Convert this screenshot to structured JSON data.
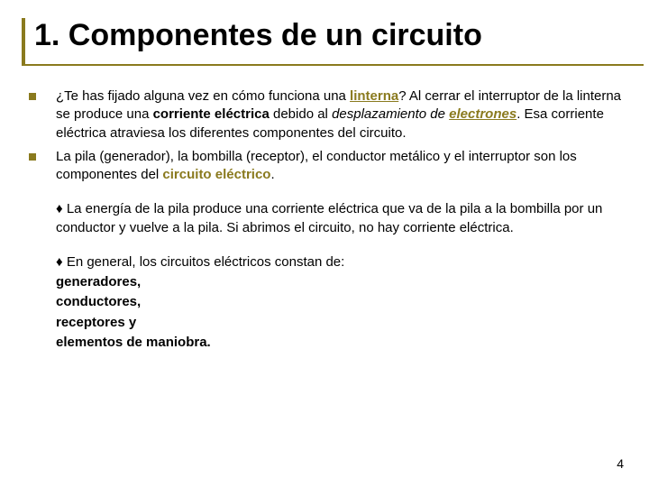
{
  "colors": {
    "accent": "#8a7a1e",
    "bullet": "#8a7a1e",
    "title_border": "#8a7a1e",
    "underline": "#8a7a1e",
    "hl": "#8a7a1e"
  },
  "title": "1. Componentes de un circuito",
  "bullets": [
    {
      "pre": "¿Te has fijado alguna vez en cómo funciona una ",
      "hl1": "linterna",
      "mid1": "? Al cerrar el interruptor de la linterna se produce una ",
      "bold1": "corriente eléctrica",
      "mid2": " debido al ",
      "ital_pre": "desplazamiento de ",
      "hl2": "electrones",
      "post": ". Esa corriente eléctrica atraviesa los diferentes componentes del circuito."
    },
    {
      "pre": "La pila (generador), la bombilla (receptor), el conductor metálico y el interruptor son los componentes del ",
      "hl1": "circuito eléctrico",
      "post": "."
    }
  ],
  "para1": "♦ La energía de la pila produce una corriente eléctrica que va de la pila a la bombilla por un conductor y vuelve a la pila. Si abrimos el circuito, no hay corriente eléctrica.",
  "para2_lead": "♦ En general, los circuitos eléctricos constan de:",
  "components": [
    "generadores,",
    "conductores,",
    "receptores y",
    "elementos de maniobra."
  ],
  "page_number": "4"
}
